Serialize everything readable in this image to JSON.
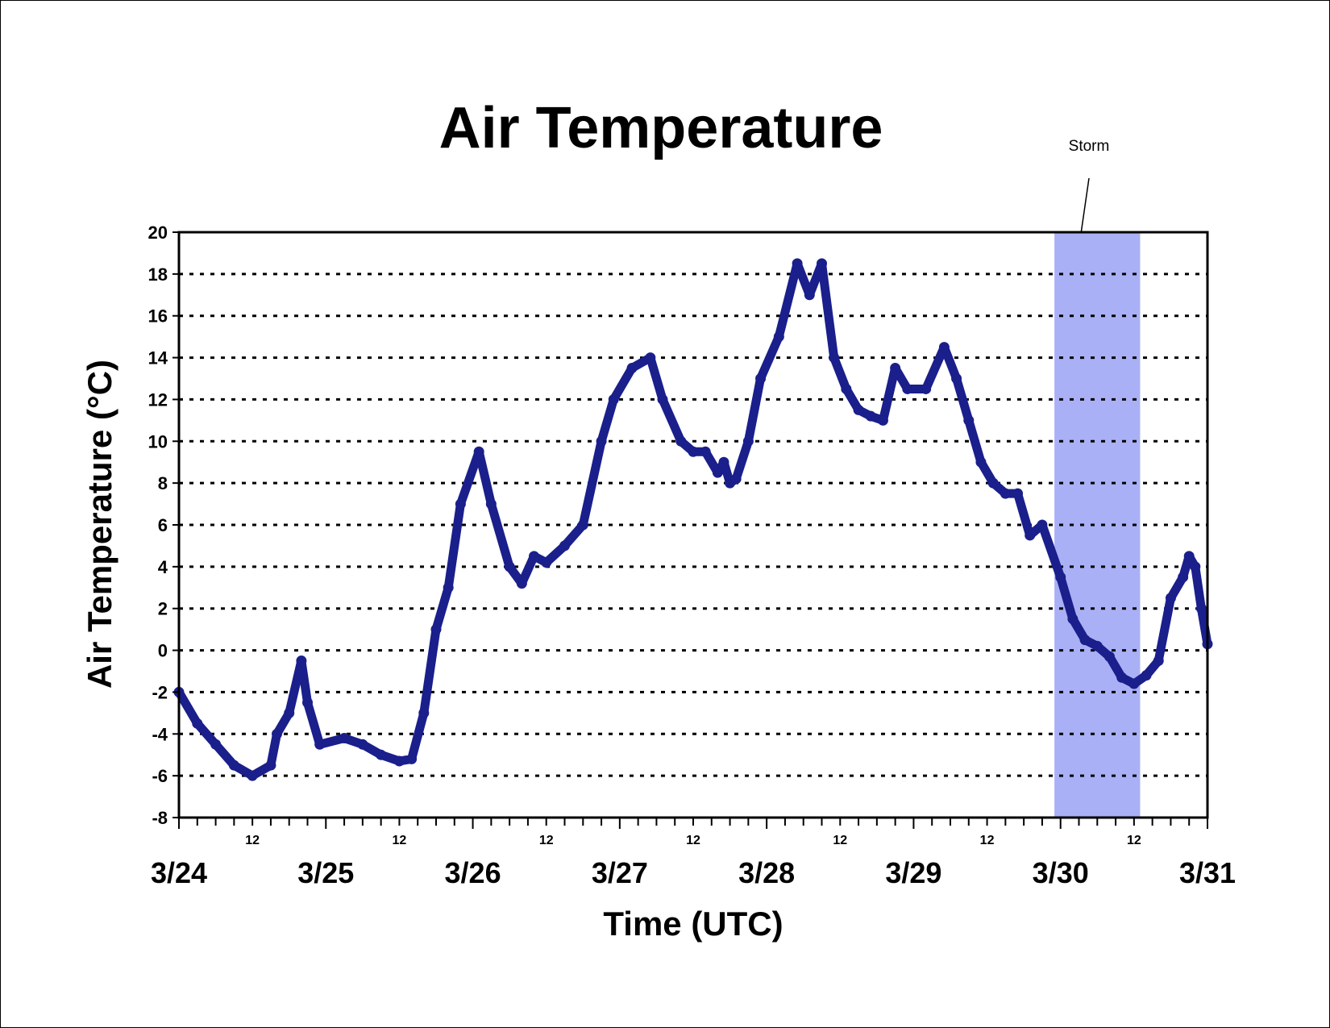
{
  "chart_data": {
    "type": "line",
    "title": "Air Temperature",
    "xlabel": "Time (UTC)",
    "ylabel": "Air Temperature (°C)",
    "ylim": [
      -8,
      20
    ],
    "yticks": [
      -8,
      -6,
      -4,
      -2,
      0,
      2,
      4,
      6,
      8,
      10,
      12,
      14,
      16,
      18,
      20
    ],
    "xlim": [
      "3/24 00:00",
      "3/31 00:00"
    ],
    "x_day_labels": [
      "3/24",
      "3/25",
      "3/26",
      "3/27",
      "3/28",
      "3/29",
      "3/30",
      "3/31"
    ],
    "x_minor_label": "12",
    "grid": "horizontal dotted",
    "series_color": "#1a1f8c",
    "shaded_region": {
      "label": "Storm",
      "start": "3/29 23:00",
      "end": "3/30 13:00",
      "color": "#aab0f5"
    },
    "series": [
      {
        "x": [
          "3/24 00:00",
          "3/24 03:00",
          "3/24 06:00",
          "3/24 09:00",
          "3/24 12:00",
          "3/24 15:00",
          "3/24 16:00",
          "3/24 18:00",
          "3/24 20:00",
          "3/24 21:00",
          "3/24 23:00",
          "3/25 03:00",
          "3/25 06:00",
          "3/25 09:00",
          "3/25 12:00",
          "3/25 14:00",
          "3/25 16:00",
          "3/25 18:00",
          "3/25 20:00",
          "3/25 22:00",
          "3/26 01:00",
          "3/26 03:00",
          "3/26 06:00",
          "3/26 08:00",
          "3/26 10:00",
          "3/26 12:00",
          "3/26 15:00",
          "3/26 18:00",
          "3/26 21:00",
          "3/26 23:00",
          "3/27 02:00",
          "3/27 05:00",
          "3/27 07:00",
          "3/27 10:00",
          "3/27 12:00",
          "3/27 14:00",
          "3/27 16:00",
          "3/27 17:00",
          "3/27 18:00",
          "3/27 19:00",
          "3/27 21:00",
          "3/27 23:00",
          "3/28 02:00",
          "3/28 05:00",
          "3/28 07:00",
          "3/28 09:00",
          "3/28 11:00",
          "3/28 13:00",
          "3/28 15:00",
          "3/28 17:00",
          "3/28 19:00",
          "3/28 21:00",
          "3/28 23:00",
          "3/29 02:00",
          "3/29 05:00",
          "3/29 07:00",
          "3/29 09:00",
          "3/29 11:00",
          "3/29 13:00",
          "3/29 15:00",
          "3/29 17:00",
          "3/29 19:00",
          "3/29 21:00",
          "3/30 00:00",
          "3/30 02:00",
          "3/30 04:00",
          "3/30 06:00",
          "3/30 08:00",
          "3/30 10:00",
          "3/30 12:00",
          "3/30 14:00",
          "3/30 16:00",
          "3/30 18:00",
          "3/30 20:00",
          "3/30 21:00",
          "3/30 22:00",
          "3/30 23:00",
          "3/31 00:00"
        ],
        "y": [
          -2,
          -3.5,
          -4.5,
          -5.5,
          -6,
          -5.5,
          -4,
          -3,
          -0.5,
          -2.5,
          -4.5,
          -4.2,
          -4.5,
          -5,
          -5.3,
          -5.2,
          -3,
          1,
          3,
          7,
          9.5,
          7,
          4,
          3.2,
          4.5,
          4.2,
          5,
          6,
          10,
          12,
          13.5,
          14,
          12,
          10,
          9.5,
          9.5,
          8.5,
          9,
          8,
          8.2,
          10,
          13,
          15,
          18.5,
          17,
          18.5,
          14,
          12.5,
          11.5,
          11.2,
          11,
          13.5,
          12.5,
          12.5,
          14.5,
          13,
          11,
          9,
          8,
          7.5,
          7.5,
          5.5,
          6,
          3.5,
          1.5,
          0.5,
          0.2,
          -0.3,
          -1.3,
          -1.6,
          -1.2,
          -0.5,
          2.5,
          3.5,
          4.5,
          4,
          2,
          0.3
        ]
      }
    ]
  },
  "annotation": {
    "label": "Storm"
  }
}
